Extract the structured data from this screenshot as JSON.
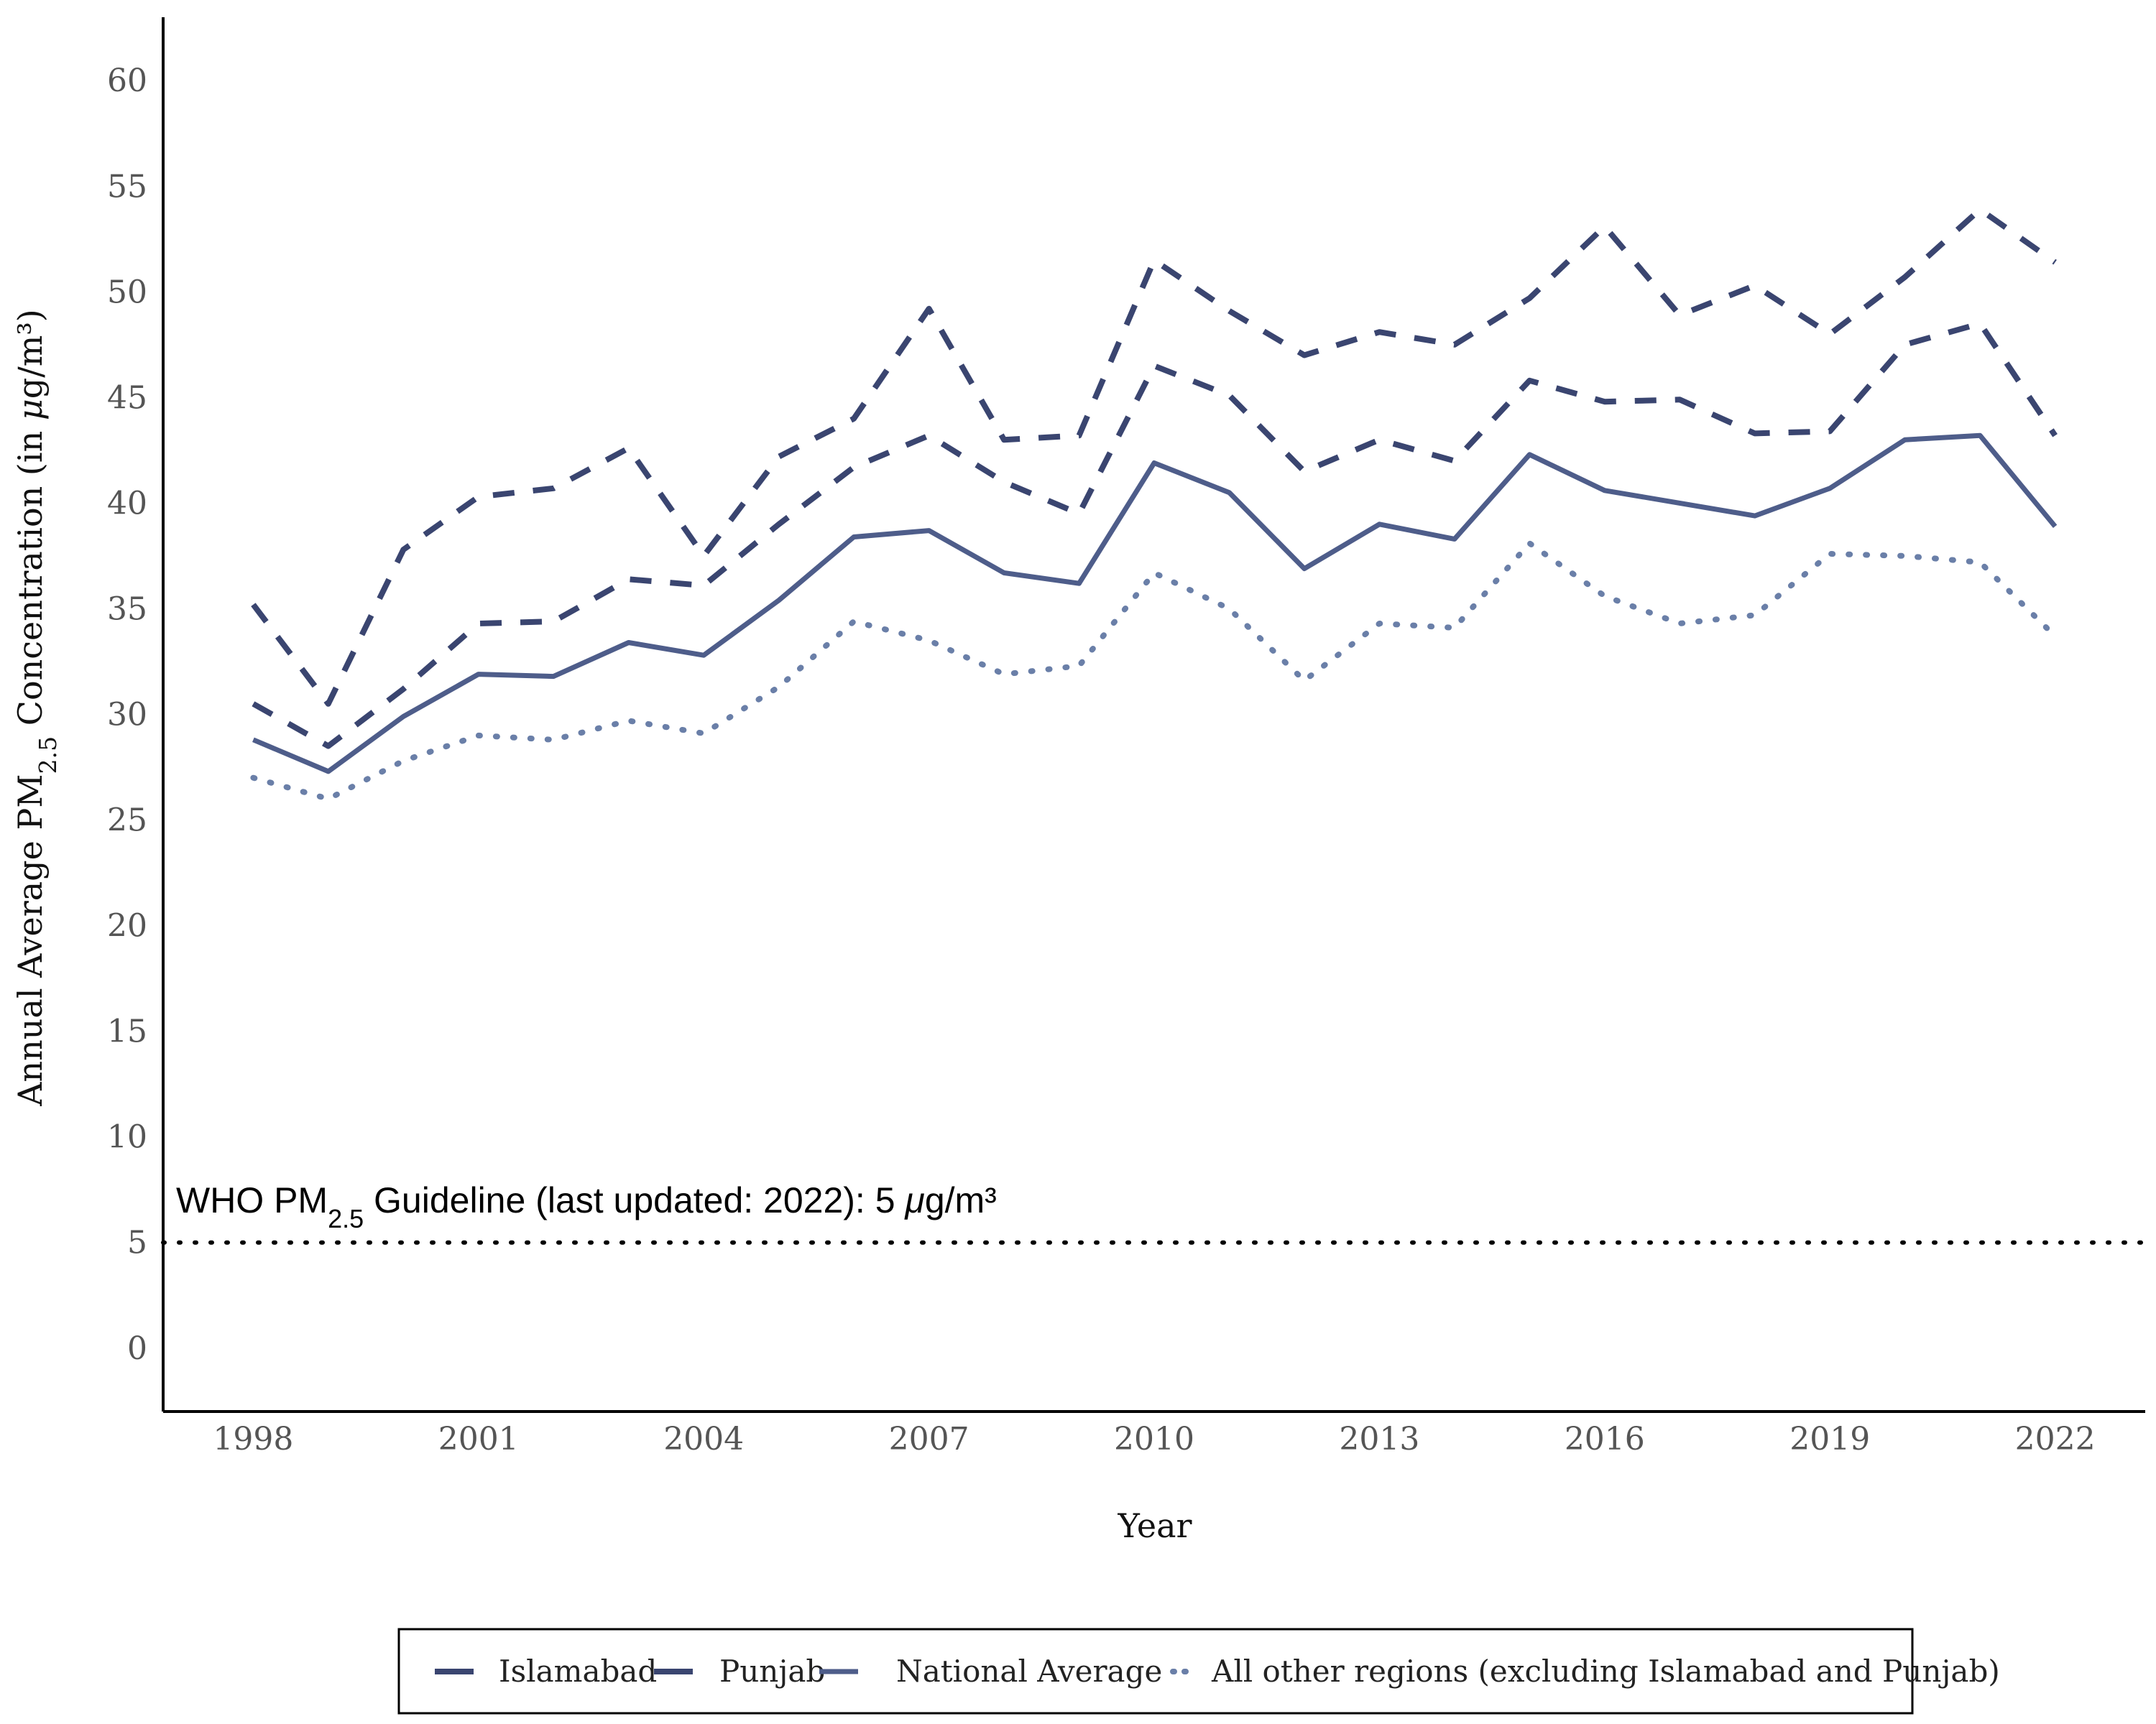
{
  "chart_data": {
    "type": "line",
    "ylabel": {
      "prefix": "Annual Average PM",
      "sub": "2.5",
      "middle": " Concentration (in ",
      "mu": "μ",
      "suffix": "g/m³)"
    },
    "xlabel": "Year",
    "ylim": [
      -3,
      63
    ],
    "xlim": [
      1996.8,
      2023.2
    ],
    "y_ticks": [
      0,
      5,
      10,
      15,
      20,
      25,
      30,
      35,
      40,
      45,
      50,
      55,
      60
    ],
    "x_ticks": [
      1998,
      2001,
      2004,
      2007,
      2010,
      2013,
      2016,
      2019,
      2022
    ],
    "grid": false,
    "legend_position": "bottom",
    "x": [
      1998,
      1999,
      2000,
      2001,
      2002,
      2003,
      2004,
      2005,
      2006,
      2007,
      2008,
      2009,
      2010,
      2011,
      2012,
      2013,
      2014,
      2015,
      2016,
      2017,
      2018,
      2019,
      2020,
      2021,
      2022
    ],
    "series": [
      {
        "name": "Islamabad",
        "style": "dashed",
        "color": "#3a4570",
        "values": [
          35.2,
          30.5,
          37.8,
          40.3,
          40.7,
          42.6,
          37.5,
          42.2,
          44.0,
          49.2,
          43.0,
          43.2,
          51.5,
          49.1,
          47.0,
          48.1,
          47.5,
          49.7,
          53.1,
          48.9,
          50.3,
          48.0,
          50.7,
          53.9,
          51.4
        ]
      },
      {
        "name": "Punjab",
        "style": "dashed",
        "color": "#3a4570",
        "values": [
          30.5,
          28.5,
          31.2,
          34.3,
          34.4,
          36.4,
          36.1,
          39.0,
          41.7,
          43.2,
          41.0,
          39.5,
          46.5,
          45.1,
          41.5,
          43.0,
          42.0,
          45.8,
          44.8,
          44.9,
          43.3,
          43.4,
          47.5,
          48.5,
          43.2
        ]
      },
      {
        "name": "National Average",
        "style": "solid",
        "color": "#4e5d8a",
        "values": [
          28.8,
          27.3,
          29.9,
          31.9,
          31.8,
          33.4,
          32.8,
          35.4,
          38.4,
          38.7,
          36.7,
          36.2,
          41.9,
          40.5,
          36.9,
          39.0,
          38.3,
          42.3,
          40.6,
          40.0,
          39.4,
          40.7,
          43.0,
          43.2,
          38.9
        ]
      },
      {
        "name": "All other regions (excluding Islamabad and Punjab)",
        "style": "dotted",
        "color": "#6a7fa8",
        "values": [
          27.0,
          26.0,
          27.8,
          29.0,
          28.8,
          29.7,
          29.1,
          31.3,
          34.4,
          33.5,
          31.9,
          32.3,
          36.7,
          35.0,
          31.6,
          34.3,
          34.1,
          38.1,
          35.6,
          34.3,
          34.7,
          37.6,
          37.5,
          37.2,
          33.7
        ]
      }
    ],
    "annotations": [
      {
        "type": "hline",
        "y": 5,
        "style": "dotted",
        "color": "#000000",
        "label": {
          "prefix": "WHO PM",
          "sub": "2.5",
          "middle": " Guideline (last updated: 2022): 5 ",
          "mu": "μ",
          "suffix": "g/m³"
        }
      }
    ]
  }
}
